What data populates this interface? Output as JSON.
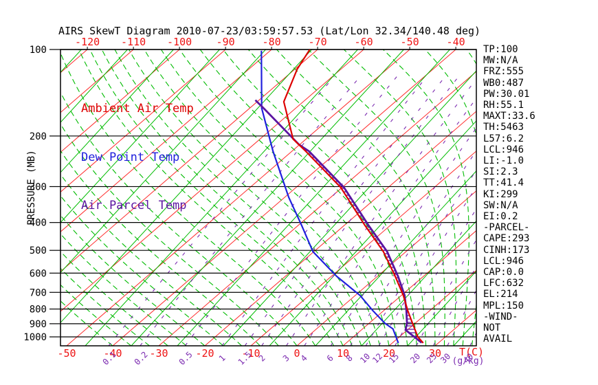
{
  "title": "AIRS SkewT Diagram 2010-07-23/03:59:57.53 (Lat/Lon 32.34/140.48 deg)",
  "colors": {
    "title_text": "#000000",
    "isotherm_red": "#ff2a2a",
    "isotherm_green": "#00bb00",
    "moist_adiabat_green": "#00bb00",
    "mixing_ratio_purple": "#7b2ab0",
    "pressure_line_black": "#000000",
    "ambient_curve": "#dd0000",
    "dewpoint_curve": "#2020dd",
    "parcel_curve": "#5a14a0",
    "temp_label_red": "#ee1111",
    "pressure_label_black": "#000000"
  },
  "legend": [
    {
      "label": "Ambient Air Temp",
      "color": "#dd0000"
    },
    {
      "label": "Dew Point Temp",
      "color": "#2020dd"
    },
    {
      "label": "Air Parcel Temp",
      "color": "#5a14a0"
    }
  ],
  "y_axis": {
    "label": "PRESSURE (MB)",
    "ticks": [
      100,
      200,
      300,
      400,
      500,
      600,
      700,
      800,
      900,
      1000
    ],
    "scale": "log"
  },
  "x_axis": {
    "label": "T(C)",
    "bottom_ticks": [
      -50,
      -40,
      -30,
      -20,
      -10,
      0,
      10,
      20,
      30
    ],
    "top_ticks": [
      -120,
      -110,
      -100,
      -90,
      -80,
      -70,
      -60,
      -50,
      -40
    ]
  },
  "mixing_ratio": {
    "unit_label": "(g/kg)",
    "values": [
      0.1,
      0.2,
      0.5,
      1,
      1.5,
      2,
      3,
      4,
      6,
      8,
      10,
      12,
      15,
      20,
      25,
      30,
      40
    ]
  },
  "stats": [
    "TP:100",
    "MW:N/A",
    "FRZ:555",
    "WB0:487",
    "PW:30.01",
    "RH:55.1",
    "MAXT:33.6",
    "TH:5463",
    "L57:6.2",
    "LCL:946",
    "LI:-1.0",
    "SI:2.3",
    "TT:41.4",
    "KI:299",
    "SW:N/A",
    "EI:0.2",
    "-PARCEL-",
    "CAPE:293",
    "CINH:173",
    "LCL:946",
    "CAP:0.0",
    "LFC:632",
    "EL:214",
    "MPL:150",
    "-WIND-",
    "NOT",
    "AVAIL"
  ],
  "chart_data": {
    "type": "line",
    "variant": "skew-t-log-p",
    "title": "AIRS SkewT Diagram 2010-07-23/03:59:57.53 (Lat/Lon 32.34/140.48 deg)",
    "x_axis": {
      "label": "T(C)",
      "bottom_ticks": [
        -50,
        -40,
        -30,
        -20,
        -10,
        0,
        10,
        20,
        30
      ],
      "top_ticks": [
        -120,
        -110,
        -100,
        -90,
        -80,
        -70,
        -60,
        -50,
        -40
      ]
    },
    "y_axis": {
      "label": "PRESSURE (MB)",
      "scale": "log",
      "range": [
        100,
        1075
      ],
      "ticks": [
        100,
        200,
        300,
        400,
        500,
        600,
        700,
        800,
        900,
        1000
      ]
    },
    "legend_position": "top-left-inside",
    "grid": "skew-t background: green isotherms, red sloped lines, green dashed moist adiabats, purple dashed mixing-ratio lines, black horizontal pressure lines",
    "series": [
      {
        "name": "Ambient Air Temp",
        "color": "#dd0000",
        "units": [
          "pressure_mb",
          "temp_C"
        ],
        "points": [
          [
            1050,
            26.7
          ],
          [
            1000,
            24.0
          ],
          [
            896,
            19.4
          ],
          [
            810,
            15.2
          ],
          [
            717,
            10.4
          ],
          [
            616,
            3.9
          ],
          [
            505,
            -4.9
          ],
          [
            407,
            -15.8
          ],
          [
            302,
            -30.3
          ],
          [
            226,
            -47.0
          ],
          [
            205,
            -52.8
          ],
          [
            152,
            -64.2
          ],
          [
            117,
            -69.5
          ],
          [
            100,
            -71.7
          ]
        ]
      },
      {
        "name": "Dew Point Temp",
        "color": "#2020dd",
        "units": [
          "pressure_mb",
          "temp_C"
        ],
        "points": [
          [
            1050,
            21.3
          ],
          [
            938,
            16.6
          ],
          [
            896,
            13.4
          ],
          [
            810,
            7.6
          ],
          [
            717,
            1.0
          ],
          [
            616,
            -8.8
          ],
          [
            505,
            -20.2
          ],
          [
            407,
            -29.5
          ],
          [
            327,
            -39.1
          ],
          [
            226,
            -54.1
          ],
          [
            160,
            -67.4
          ],
          [
            101,
            -81.9
          ]
        ]
      },
      {
        "name": "Air Parcel Temp",
        "color": "#5a14a0",
        "units": [
          "pressure_mb",
          "temp_C"
        ],
        "points": [
          [
            1048,
            26.3
          ],
          [
            946,
            19.6
          ],
          [
            896,
            18.2
          ],
          [
            810,
            14.9
          ],
          [
            717,
            10.7
          ],
          [
            616,
            4.5
          ],
          [
            505,
            -4.1
          ],
          [
            407,
            -15.0
          ],
          [
            302,
            -29.6
          ],
          [
            226,
            -46.3
          ],
          [
            214,
            -50.2
          ],
          [
            160,
            -67.0
          ],
          [
            150,
            -70.8
          ]
        ]
      }
    ],
    "hatched_region": "between Ambient Air Temp and Air Parcel Temp curves from ~950mb up to ~215mb (CAPE/CINH)",
    "stats_panel": [
      "TP:100",
      "MW:N/A",
      "FRZ:555",
      "WB0:487",
      "PW:30.01",
      "RH:55.1",
      "MAXT:33.6",
      "TH:5463",
      "L57:6.2",
      "LCL:946",
      "LI:-1.0",
      "SI:2.3",
      "TT:41.4",
      "KI:299",
      "SW:N/A",
      "EI:0.2",
      "-PARCEL-",
      "CAPE:293",
      "CINH:173",
      "LCL:946",
      "CAP:0.0",
      "LFC:632",
      "EL:214",
      "MPL:150",
      "-WIND-",
      "NOT",
      "AVAIL"
    ],
    "mixing_ratio_lines_g_per_kg": [
      0.1,
      0.2,
      0.5,
      1,
      1.5,
      2,
      3,
      4,
      6,
      8,
      10,
      12,
      15,
      20,
      25,
      30,
      40
    ]
  }
}
